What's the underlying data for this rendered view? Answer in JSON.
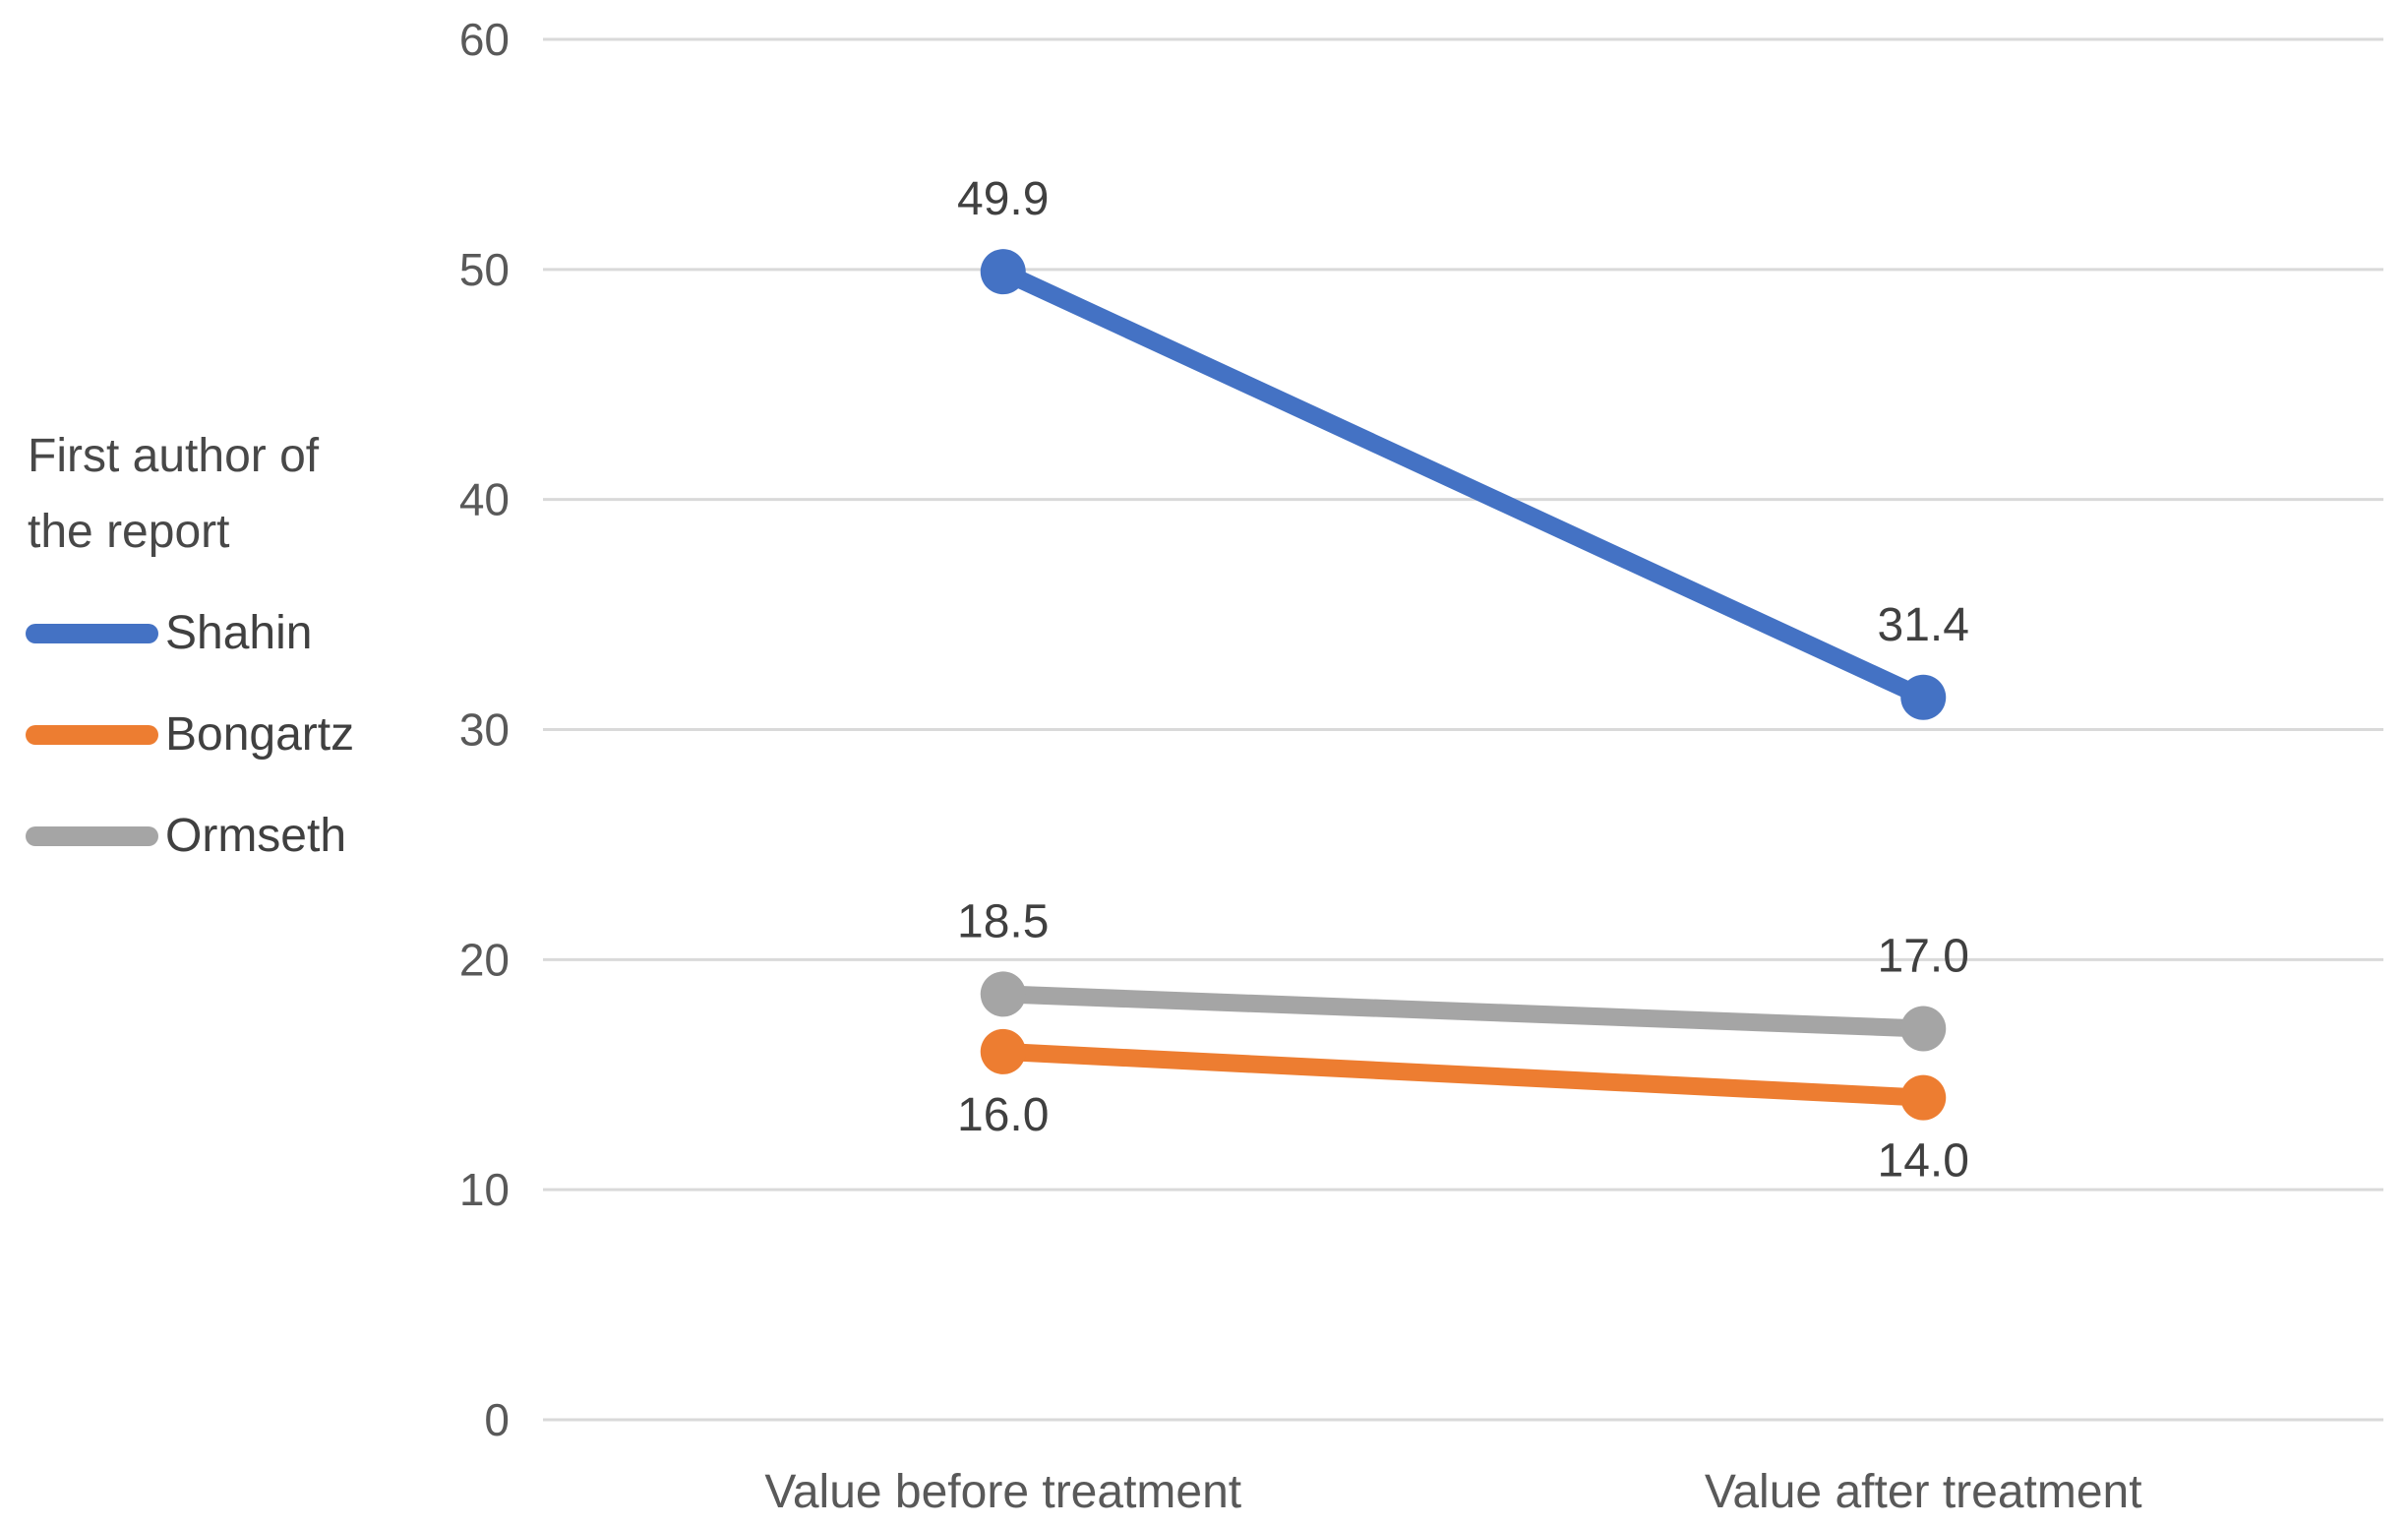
{
  "chart_data": {
    "type": "line",
    "title": "",
    "categories": [
      "Value before treatment",
      "Value after treatment"
    ],
    "series": [
      {
        "name": "Shahin",
        "color": "#4472C4",
        "values": [
          49.9,
          31.4
        ],
        "data_labels": [
          "49.9",
          "31.4"
        ],
        "label_position": "above"
      },
      {
        "name": "Bongartz",
        "color": "#ED7D31",
        "values": [
          16.0,
          14.0
        ],
        "data_labels": [
          "16.0",
          "14.0"
        ],
        "label_position": "below"
      },
      {
        "name": "Ormseth",
        "color": "#A5A5A5",
        "values": [
          18.5,
          17.0
        ],
        "data_labels": [
          "18.5",
          "17.0"
        ],
        "label_position": "above"
      }
    ],
    "y_axis": {
      "min": 0,
      "max": 60,
      "tick_step": 10,
      "ticks": [
        "0",
        "10",
        "20",
        "30",
        "40",
        "50",
        "60"
      ]
    },
    "x_axis": {
      "labels": [
        "Value before treatment",
        "Value after treatment"
      ]
    },
    "legend": {
      "position": "left",
      "title_lines": [
        "First author of",
        "the report"
      ],
      "entries": [
        "Shahin",
        "Bongartz",
        "Ormseth"
      ]
    },
    "grid": true,
    "colors": {
      "gridline": "#D9D9D9",
      "axis_text": "#595959",
      "data_label_text": "#404040",
      "legend_text": "#404040",
      "background": "#FFFFFF"
    }
  }
}
